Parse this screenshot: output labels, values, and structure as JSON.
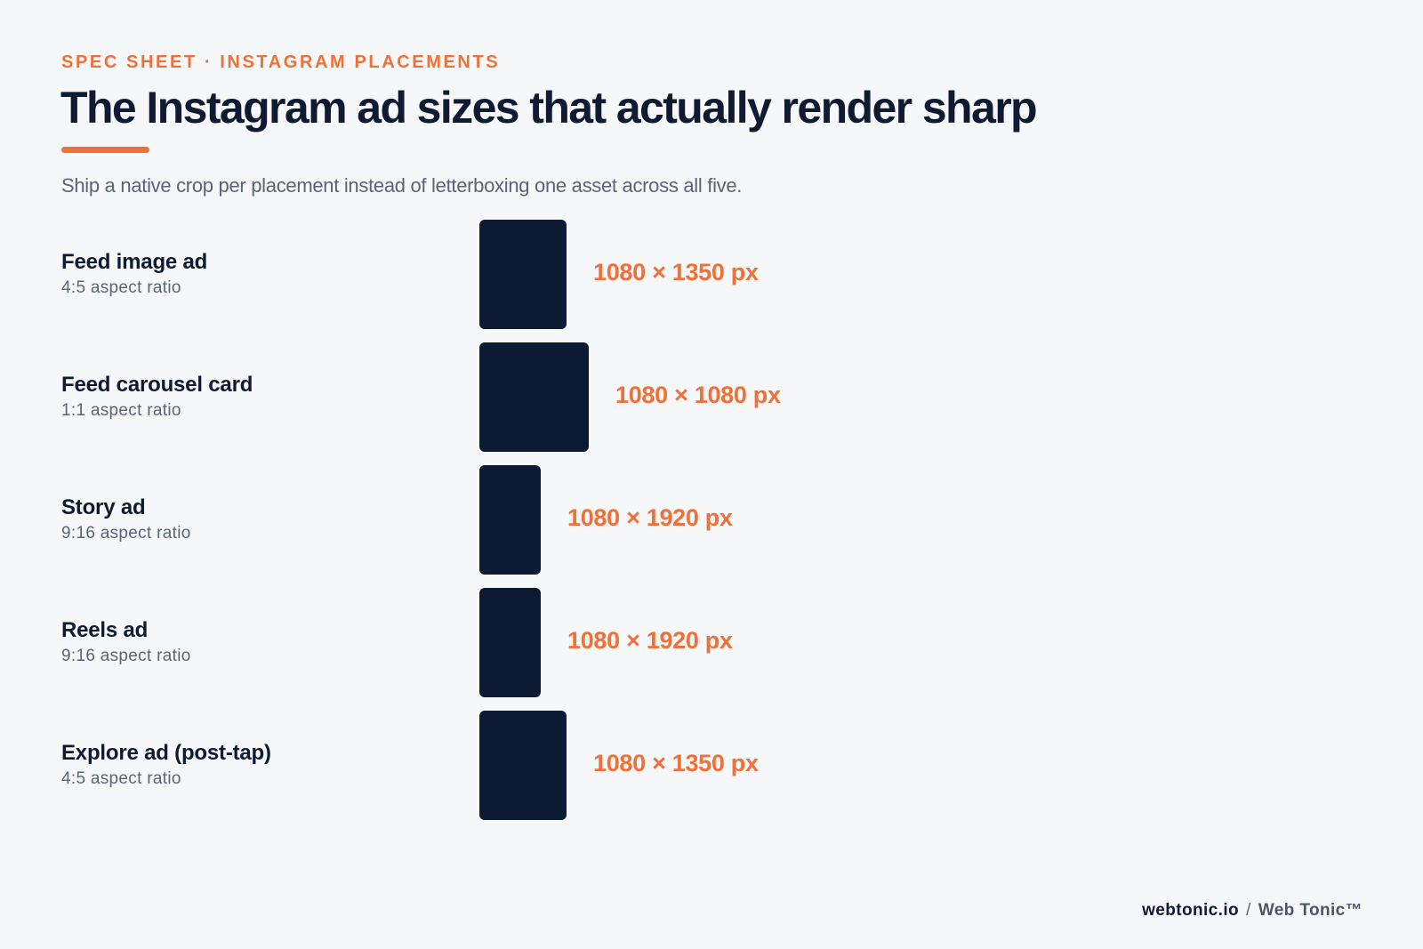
{
  "header": {
    "eyebrow": "SPEC SHEET · INSTAGRAM PLACEMENTS",
    "title": "The Instagram ad sizes that actually render sharp",
    "subtitle": "Ship a native crop per placement instead of letterboxing one asset across all five."
  },
  "colors": {
    "accent": "#f0703a",
    "navy": "#0c1a33",
    "muted": "#5a6477",
    "background": "#f6f7f9"
  },
  "placements": [
    {
      "name": "Feed image ad",
      "ratio": "4:5 aspect ratio",
      "dimensions": "1080 × 1350 px",
      "aspect_w": 4,
      "aspect_h": 5
    },
    {
      "name": "Feed carousel card",
      "ratio": "1:1 aspect ratio",
      "dimensions": "1080 × 1080 px",
      "aspect_w": 1,
      "aspect_h": 1
    },
    {
      "name": "Story ad",
      "ratio": "9:16 aspect ratio",
      "dimensions": "1080 × 1920 px",
      "aspect_w": 9,
      "aspect_h": 16
    },
    {
      "name": "Reels ad",
      "ratio": "9:16 aspect ratio",
      "dimensions": "1080 × 1920 px",
      "aspect_w": 9,
      "aspect_h": 16
    },
    {
      "name": "Explore ad (post-tap)",
      "ratio": "4:5 aspect ratio",
      "dimensions": "1080 × 1350 px",
      "aspect_w": 4,
      "aspect_h": 5
    }
  ],
  "footer": {
    "domain": "webtonic.io",
    "separator": "/",
    "brand": "Web Tonic™"
  }
}
